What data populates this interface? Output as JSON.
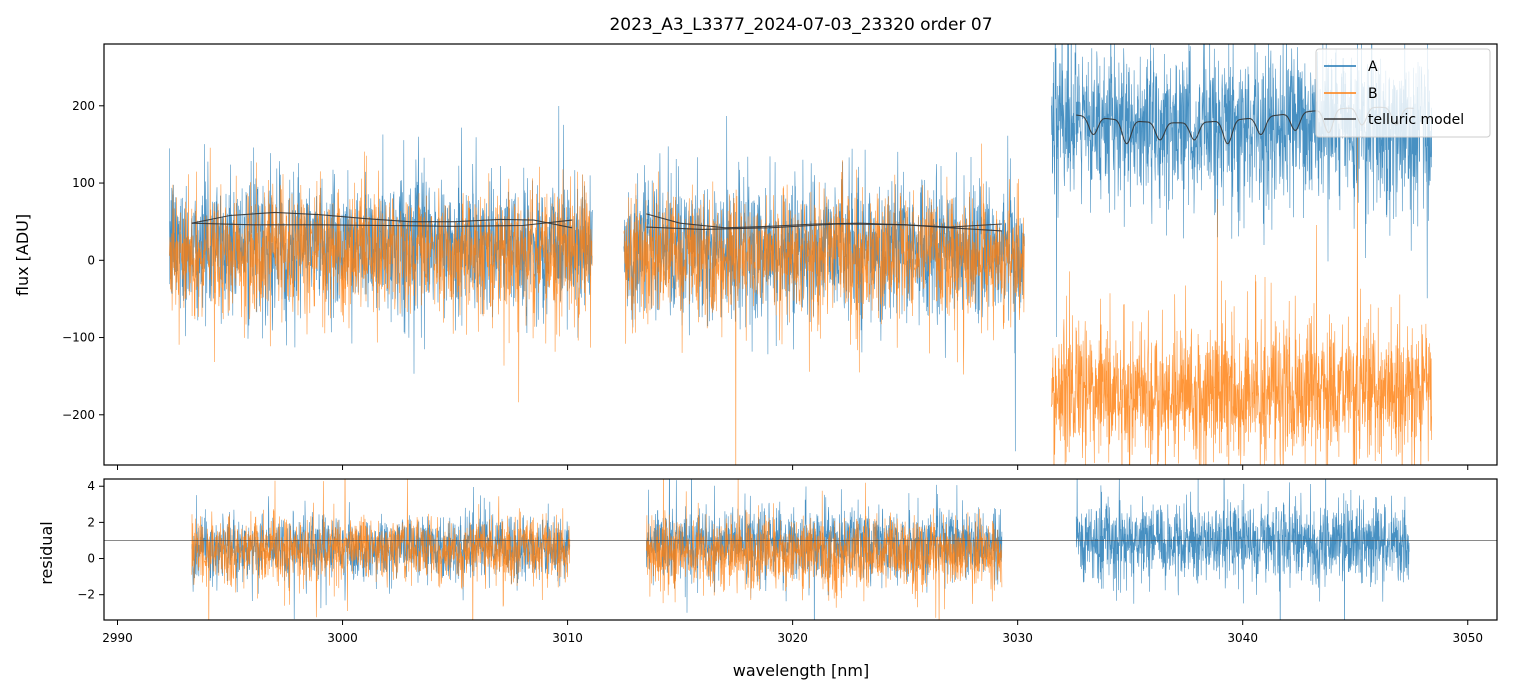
{
  "figure": {
    "title": "2023_A3_L3377_2024-07-03_23320  order 07"
  },
  "colors": {
    "A": "#1f77b4",
    "B": "#ff7f0e",
    "model": "#333333"
  },
  "chart_data": [
    {
      "type": "line",
      "panel": "flux",
      "title": "2023_A3_L3377_2024-07-03_23320  order 07",
      "xlabel": "",
      "ylabel": "flux [ADU]",
      "xlim": [
        2989.4,
        3051.3
      ],
      "ylim": [
        -265,
        280
      ],
      "x_ticks": [
        2990,
        3000,
        3010,
        3020,
        3030,
        3040,
        3050
      ],
      "y_ticks": [
        -200,
        -100,
        0,
        100,
        200
      ],
      "y_tick_labels": [
        "−200",
        "−100",
        "0",
        "100",
        "200"
      ],
      "grid": false,
      "legend": "top-right",
      "series": [
        {
          "name": "A",
          "color": "#1f77b4",
          "segments": [
            {
              "x_start": 2992.3,
              "x_end": 3011.1,
              "center": 20,
              "noise": 45
            },
            {
              "x_start": 3012.5,
              "x_end": 3030.3,
              "center": 15,
              "noise": 45
            },
            {
              "x_start": 3031.5,
              "x_end": 3048.4,
              "center": 170,
              "noise": 50
            }
          ]
        },
        {
          "name": "B",
          "color": "#ff7f0e",
          "segments": [
            {
              "x_start": 2992.3,
              "x_end": 3011.1,
              "center": 10,
              "noise": 40
            },
            {
              "x_start": 3012.5,
              "x_end": 3030.3,
              "center": 5,
              "noise": 40
            },
            {
              "x_start": 3031.5,
              "x_end": 3048.4,
              "center": -170,
              "noise": 45
            }
          ]
        },
        {
          "name": "telluric model",
          "color": "#333333",
          "segments": [
            {
              "x": [
                2993.3,
                2995.0,
                2997.0,
                2999.0,
                3001.0,
                3003.0,
                3005.0,
                3007.0,
                3008.5,
                3010.2
              ],
              "y": [
                48,
                58,
                62,
                59,
                54,
                50,
                50,
                53,
                52,
                42
              ]
            },
            {
              "x": [
                2993.3,
                2996.0,
                2999.0,
                3002.0,
                3005.0,
                3008.0,
                3010.2
              ],
              "y": [
                48,
                46,
                46,
                45,
                44,
                45,
                52
              ]
            },
            {
              "x": [
                3013.5,
                3015.0,
                3017.0,
                3019.0,
                3021.0,
                3023.0,
                3025.0,
                3027.0,
                3029.3
              ],
              "y": [
                60,
                48,
                42,
                44,
                47,
                48,
                46,
                42,
                38
              ]
            },
            {
              "x": [
                3013.5,
                3016.0,
                3019.0,
                3022.0,
                3025.0,
                3027.0,
                3029.3
              ],
              "y": [
                43,
                40,
                42,
                47,
                46,
                43,
                47
              ]
            },
            {
              "x_start": 3032.6,
              "x_end": 3047.6,
              "baseline": 188,
              "line_depth": 30
            }
          ]
        }
      ]
    },
    {
      "type": "line",
      "panel": "residual",
      "xlabel": "wavelength [nm]",
      "ylabel": "residual",
      "xlim": [
        2989.4,
        3051.3
      ],
      "ylim": [
        -3.4,
        4.4
      ],
      "x_ticks": [
        2990,
        3000,
        3010,
        3020,
        3030,
        3040,
        3050
      ],
      "y_ticks": [
        -2,
        0,
        2,
        4
      ],
      "y_tick_labels": [
        "−2",
        "0",
        "2",
        "4"
      ],
      "reference_line": 1.0,
      "grid": false,
      "series": [
        {
          "name": "A",
          "color": "#1f77b4",
          "segments": [
            {
              "x_start": 2993.3,
              "x_end": 3010.1,
              "center": 0.6,
              "noise": 0.9
            },
            {
              "x_start": 3013.5,
              "x_end": 3029.3,
              "center": 0.8,
              "noise": 1.0
            },
            {
              "x_start": 3032.6,
              "x_end": 3047.4,
              "center": 0.9,
              "noise": 1.1
            }
          ]
        },
        {
          "name": "B",
          "color": "#ff7f0e",
          "segments": [
            {
              "x_start": 2993.3,
              "x_end": 3010.1,
              "center": 0.5,
              "noise": 0.9
            },
            {
              "x_start": 3013.5,
              "x_end": 3029.3,
              "center": 0.3,
              "noise": 1.0
            }
          ]
        }
      ]
    }
  ]
}
